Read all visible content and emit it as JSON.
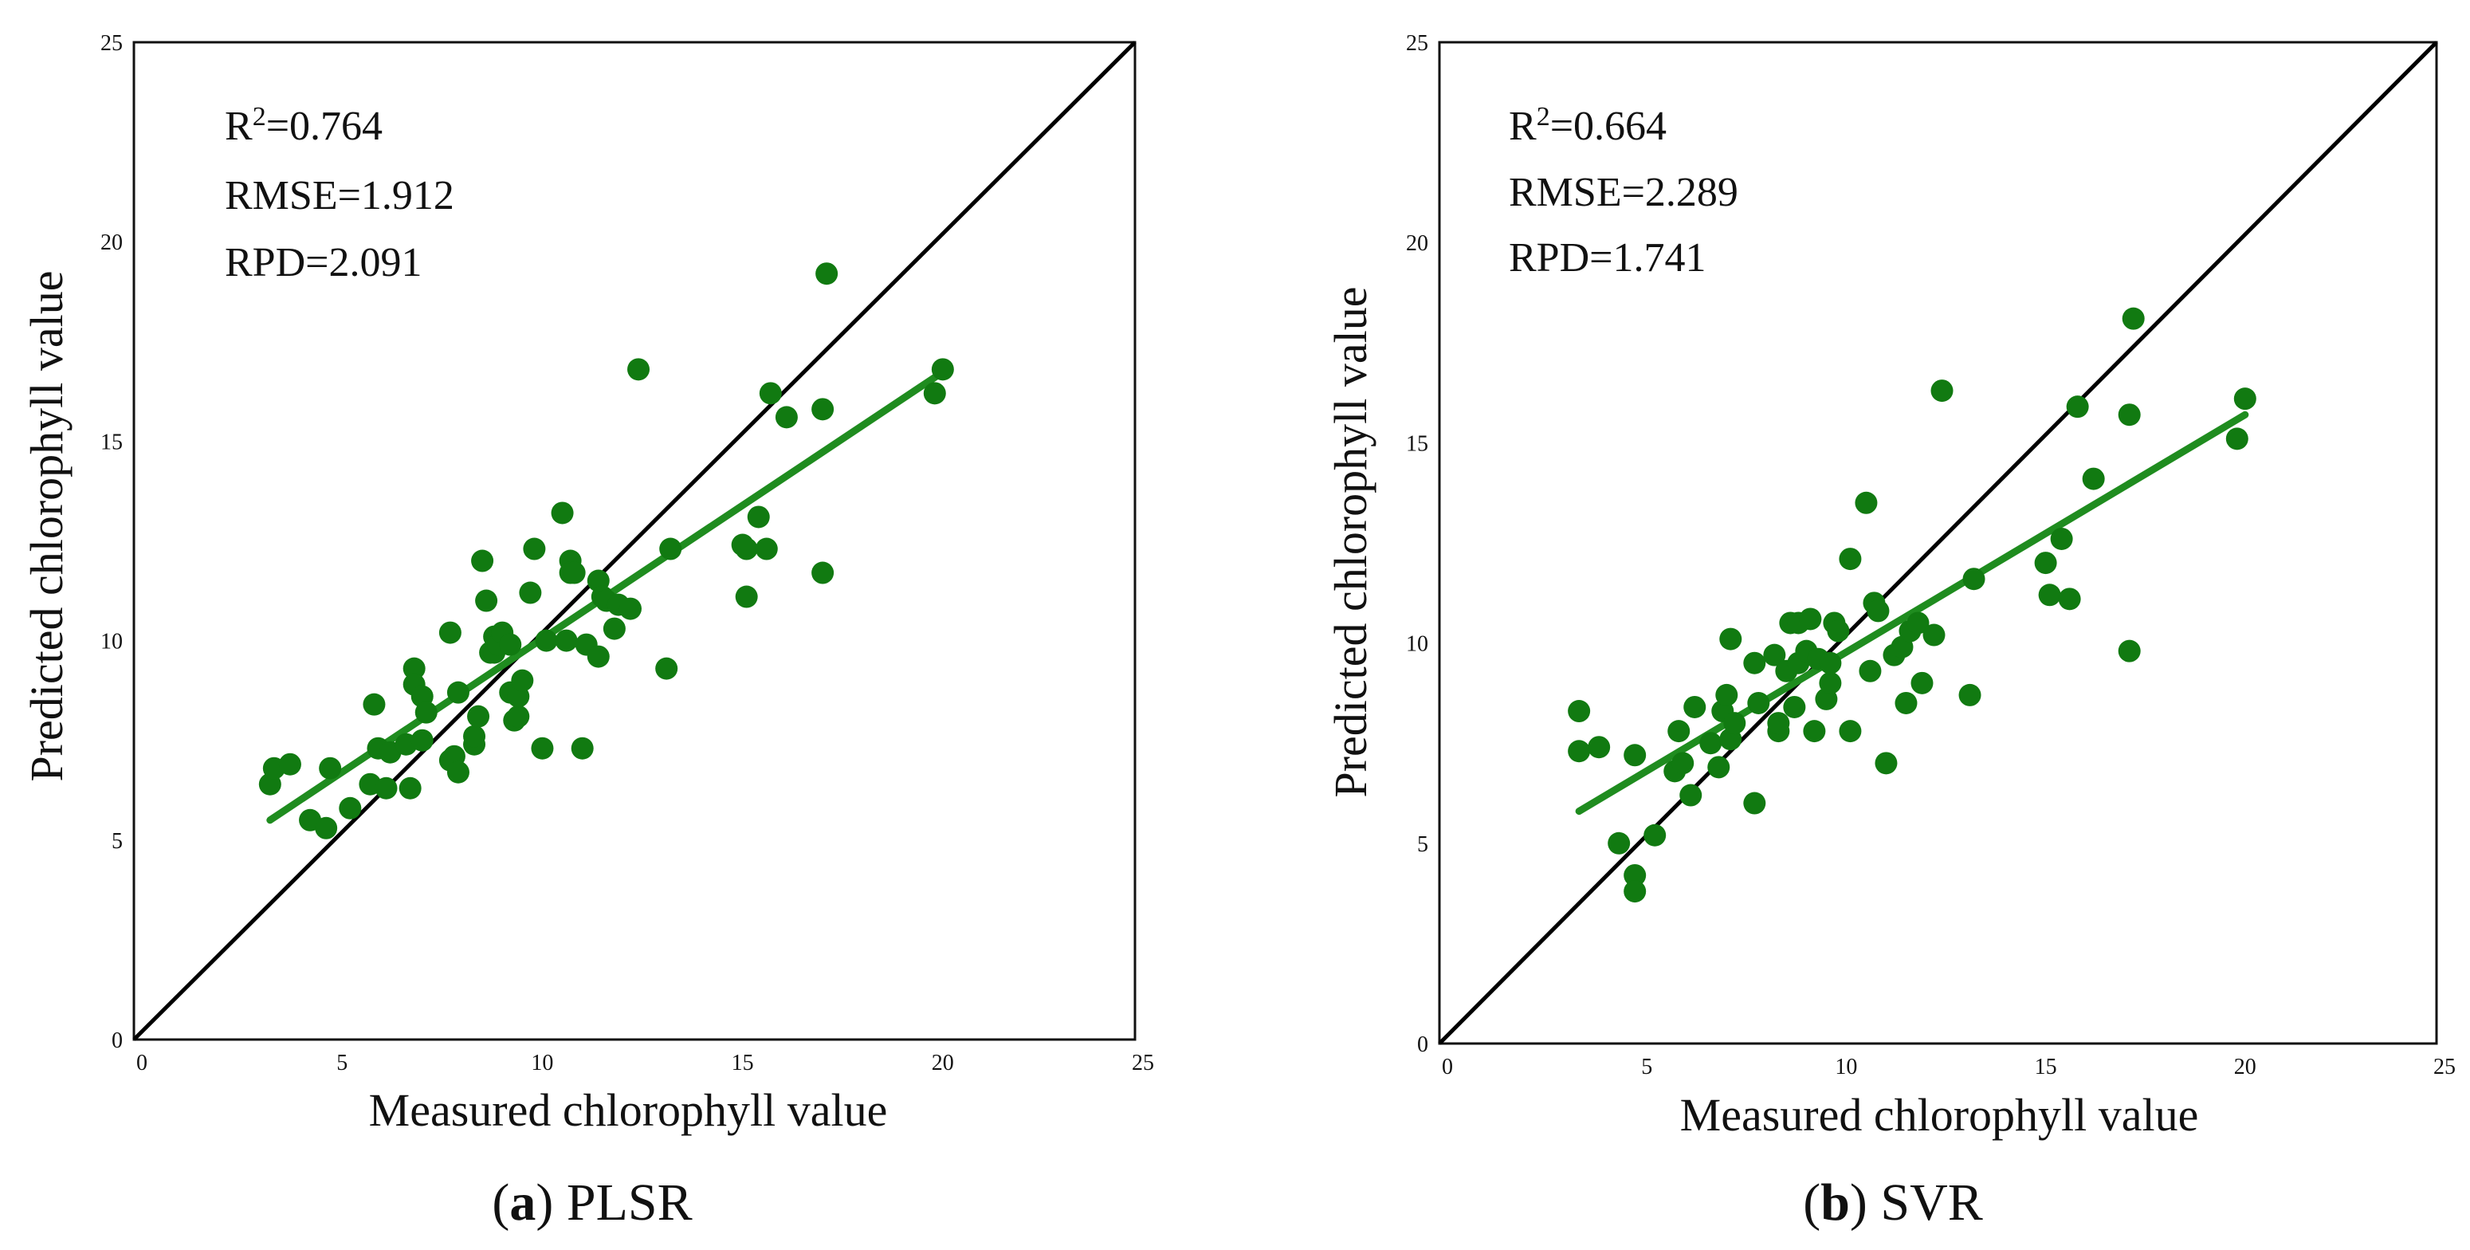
{
  "chart_data": [
    {
      "type": "scatter",
      "panel_letter": "a",
      "panel_name": "PLSR",
      "xlabel": "Measured chlorophyll value",
      "ylabel": "Predicted chlorophyll value",
      "xlim": [
        0,
        25
      ],
      "ylim": [
        0,
        25
      ],
      "xticks": [
        "0",
        "5",
        "10",
        "15",
        "20",
        "25"
      ],
      "yticks": [
        "0",
        "5",
        "10",
        "15",
        "20",
        "25"
      ],
      "stats": {
        "r2_prefix": "R",
        "r2_sup": "2",
        "r2_value": "=0.764",
        "rmse": "RMSE=1.912",
        "rpd": "RPD=2.091"
      },
      "grid": false,
      "colors": {
        "points": "#117a11",
        "fit_line": "#1f8c1f",
        "identity_line": "#000000"
      },
      "identity_line": [
        [
          0,
          0
        ],
        [
          25,
          25
        ]
      ],
      "fit_line": [
        [
          3.4,
          5.5
        ],
        [
          20.3,
          16.8
        ]
      ],
      "x": [
        3.4,
        3.5,
        3.9,
        4.4,
        4.8,
        4.9,
        5.4,
        5.9,
        6.0,
        6.1,
        6.3,
        6.4,
        6.8,
        6.9,
        7.0,
        7.0,
        7.2,
        7.2,
        7.3,
        7.9,
        7.9,
        8.0,
        8.1,
        8.1,
        8.5,
        8.5,
        8.6,
        8.7,
        8.8,
        8.9,
        9.0,
        9.0,
        9.1,
        9.2,
        9.4,
        9.4,
        9.5,
        9.6,
        9.6,
        9.7,
        9.9,
        10.0,
        10.2,
        10.3,
        10.7,
        10.8,
        10.9,
        10.9,
        11.0,
        11.2,
        11.3,
        11.6,
        11.6,
        11.7,
        11.8,
        12.0,
        12.1,
        12.4,
        12.6,
        13.3,
        13.4,
        15.2,
        15.3,
        15.3,
        15.6,
        15.8,
        15.9,
        16.3,
        17.2,
        17.2,
        17.3,
        20.0,
        20.2
      ],
      "y": [
        6.4,
        6.8,
        6.9,
        5.5,
        5.3,
        6.8,
        5.8,
        6.4,
        8.4,
        7.3,
        6.3,
        7.2,
        7.4,
        6.3,
        9.3,
        8.9,
        8.6,
        7.5,
        8.2,
        7.0,
        10.2,
        7.1,
        8.7,
        6.7,
        7.4,
        7.6,
        8.1,
        12.0,
        11.0,
        9.7,
        10.1,
        9.7,
        9.9,
        10.2,
        8.7,
        9.9,
        8.0,
        8.1,
        8.6,
        9.0,
        11.2,
        12.3,
        7.3,
        10.0,
        13.2,
        10.0,
        12.0,
        11.7,
        11.7,
        7.3,
        9.9,
        11.5,
        9.6,
        11.1,
        11.0,
        10.3,
        10.9,
        10.8,
        16.8,
        9.3,
        12.3,
        12.4,
        11.1,
        12.3,
        13.1,
        12.3,
        16.2,
        15.6,
        11.7,
        15.8,
        19.2,
        16.2,
        16.8
      ]
    },
    {
      "type": "scatter",
      "panel_letter": "b",
      "panel_name": "SVR",
      "xlabel": "Measured chlorophyll value",
      "ylabel": "Predicted chlorophyll value",
      "xlim": [
        0,
        25
      ],
      "ylim": [
        0,
        25
      ],
      "xticks": [
        "0",
        "5",
        "10",
        "15",
        "20",
        "25"
      ],
      "yticks": [
        "0",
        "5",
        "10",
        "15",
        "20",
        "25"
      ],
      "stats": {
        "r2_prefix": "R",
        "r2_sup": "2",
        "r2_value": "=0.664",
        "rmse": "RMSE=2.289",
        "rpd": "RPD=1.741"
      },
      "grid": false,
      "colors": {
        "points": "#117a11",
        "fit_line": "#1f8c1f",
        "identity_line": "#000000"
      },
      "identity_line": [
        [
          0,
          0
        ],
        [
          25,
          25
        ]
      ],
      "fit_line": [
        [
          3.5,
          5.8
        ],
        [
          20.2,
          15.7
        ]
      ],
      "x": [
        3.5,
        3.5,
        4.0,
        4.5,
        4.9,
        4.9,
        4.9,
        5.4,
        5.9,
        6.0,
        6.1,
        6.3,
        6.4,
        6.8,
        7.0,
        7.1,
        7.2,
        7.3,
        7.3,
        7.4,
        7.9,
        7.9,
        8.0,
        8.4,
        8.5,
        8.5,
        8.7,
        8.8,
        8.9,
        9.0,
        9.0,
        9.2,
        9.3,
        9.4,
        9.5,
        9.7,
        9.8,
        9.8,
        9.9,
        10.0,
        10.3,
        10.3,
        10.7,
        10.8,
        10.9,
        11.0,
        11.2,
        11.4,
        11.6,
        11.7,
        11.8,
        12.0,
        12.1,
        12.4,
        12.6,
        13.3,
        13.4,
        15.2,
        15.3,
        15.6,
        15.8,
        16.0,
        16.4,
        17.3,
        17.3,
        17.4,
        20.0,
        20.2
      ],
      "y": [
        8.3,
        7.3,
        7.4,
        5.0,
        4.2,
        3.8,
        7.2,
        5.2,
        6.8,
        7.8,
        7.0,
        6.2,
        8.4,
        7.5,
        6.9,
        8.3,
        8.7,
        10.1,
        7.6,
        8.0,
        6.0,
        9.5,
        8.5,
        9.7,
        7.8,
        8.0,
        9.3,
        10.5,
        8.4,
        9.5,
        10.5,
        9.8,
        10.6,
        7.8,
        9.6,
        8.6,
        9.0,
        9.5,
        10.5,
        10.3,
        12.1,
        7.8,
        13.5,
        9.3,
        11.0,
        10.8,
        7.0,
        9.7,
        9.9,
        8.5,
        10.3,
        10.5,
        9.0,
        10.2,
        16.3,
        8.7,
        11.6,
        12.0,
        11.2,
        12.6,
        11.1,
        15.9,
        14.1,
        15.7,
        9.8,
        18.1,
        15.1,
        16.1
      ]
    }
  ]
}
